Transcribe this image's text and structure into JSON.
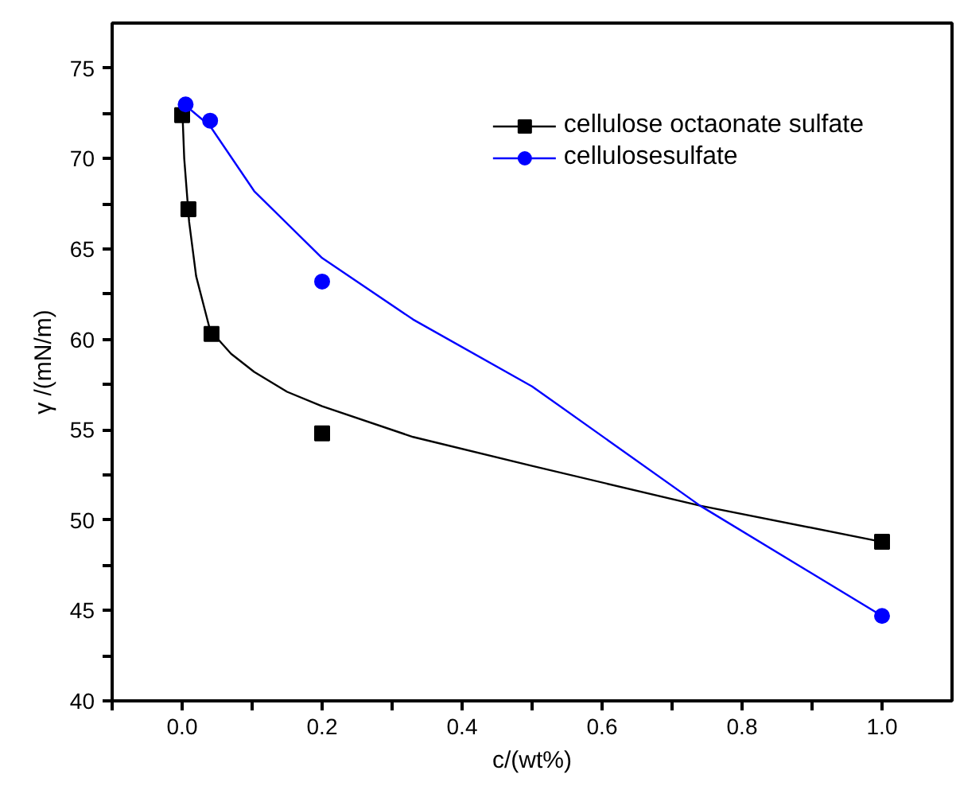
{
  "chart_data": {
    "type": "scatter",
    "xlabel": "c/(wt%)",
    "ylabel": "γ /(mN/m)",
    "xlim": [
      -0.1,
      1.1
    ],
    "ylim": [
      40,
      77.5
    ],
    "xticks": [
      {
        "value": -0.1,
        "label": null
      },
      {
        "value": 0.0,
        "label": "0.0"
      },
      {
        "value": 0.1,
        "label": null
      },
      {
        "value": 0.2,
        "label": "0.2"
      },
      {
        "value": 0.3,
        "label": null
      },
      {
        "value": 0.4,
        "label": "0.4"
      },
      {
        "value": 0.5,
        "label": null
      },
      {
        "value": 0.6,
        "label": "0.6"
      },
      {
        "value": 0.7,
        "label": null
      },
      {
        "value": 0.8,
        "label": "0.8"
      },
      {
        "value": 0.9,
        "label": null
      },
      {
        "value": 1.0,
        "label": "1.0"
      }
    ],
    "yticks": [
      40,
      {
        "value": 42.5,
        "label": null
      },
      45,
      {
        "value": 47.5,
        "label": null
      },
      50,
      {
        "value": 52.5,
        "label": null
      },
      55,
      {
        "value": 57.5,
        "label": null
      },
      60,
      {
        "value": 62.5,
        "label": null
      },
      65,
      {
        "value": 67.5,
        "label": null
      },
      70,
      {
        "value": 72.5,
        "label": null
      },
      75
    ],
    "grid": false,
    "legend": "top right",
    "series": [
      {
        "name": "cellulose octaonate sulfate",
        "marker": "square",
        "color": "#000000",
        "x": [
          0.0,
          0.009,
          0.042,
          0.2,
          1.0
        ],
        "values": [
          72.4,
          67.2,
          60.3,
          54.8,
          48.8
        ]
      },
      {
        "type": "line",
        "color": "#000000",
        "x": [
          0.0,
          0.003,
          0.01,
          0.02,
          0.04,
          0.07,
          0.103,
          0.15,
          0.2,
          0.33,
          0.5,
          0.74,
          1.0
        ],
        "values": [
          73.0,
          70.0,
          66.5,
          63.5,
          60.5,
          59.2,
          58.2,
          57.1,
          56.3,
          54.6,
          53.0,
          50.8,
          48.8
        ]
      },
      {
        "name": "cellulosesulfate",
        "marker": "circle",
        "color": "#0000ff",
        "x": [
          0.005,
          0.04,
          0.2,
          1.0
        ],
        "values": [
          73.0,
          72.1,
          63.2,
          44.7
        ]
      },
      {
        "type": "line",
        "color": "#0000ff",
        "x": [
          0.0,
          0.04,
          0.103,
          0.2,
          0.33,
          0.5,
          0.74,
          1.0
        ],
        "values": [
          73.1,
          71.8,
          68.2,
          64.5,
          61.1,
          57.4,
          50.8,
          44.7
        ]
      }
    ]
  }
}
